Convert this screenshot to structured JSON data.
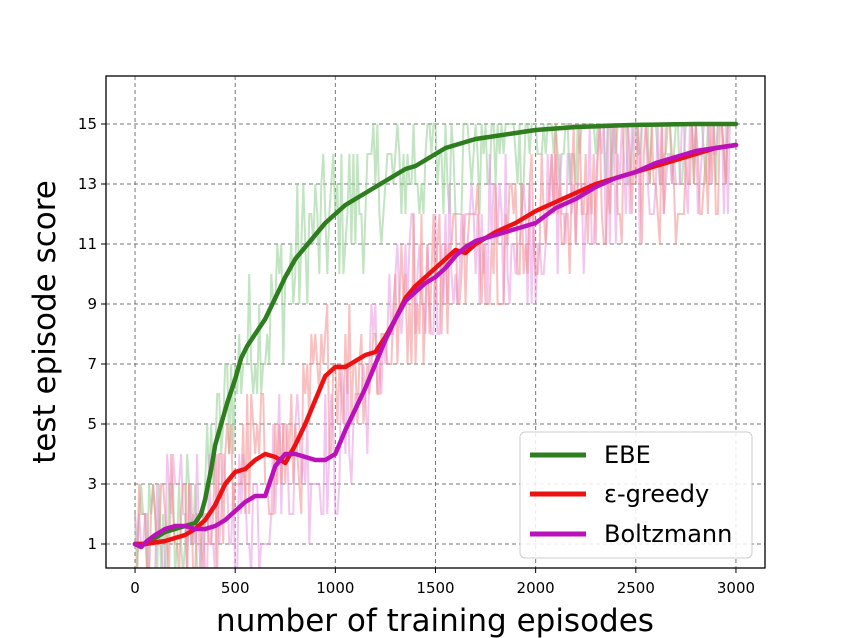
{
  "chart_data": {
    "type": "line",
    "title": "",
    "xlabel": "number of training episodes",
    "ylabel": "test episode score",
    "xlim": [
      -145,
      3145
    ],
    "ylim": [
      0.2,
      16.6
    ],
    "xticks": [
      0,
      500,
      1000,
      1500,
      2000,
      2500,
      3000
    ],
    "yticks": [
      1,
      3,
      5,
      7,
      9,
      11,
      13,
      15
    ],
    "grid": true,
    "legend_position": "lower-right",
    "series": [
      {
        "name": "EBE",
        "color": "#2e7d1f",
        "raw_color": "#8fce8f",
        "x": [
          0,
          50,
          100,
          150,
          200,
          250,
          300,
          330,
          350,
          380,
          400,
          430,
          460,
          500,
          530,
          560,
          600,
          650,
          700,
          750,
          800,
          850,
          900,
          950,
          1000,
          1050,
          1100,
          1150,
          1200,
          1250,
          1300,
          1350,
          1400,
          1450,
          1500,
          1550,
          1600,
          1650,
          1700,
          1800,
          1900,
          2000,
          2100,
          2200,
          2300,
          2400,
          2500,
          2600,
          2700,
          2800,
          2900,
          3000
        ],
        "y": [
          1.0,
          1.0,
          1.2,
          1.4,
          1.5,
          1.6,
          1.7,
          2.0,
          2.5,
          3.5,
          4.3,
          5.0,
          5.7,
          6.5,
          7.2,
          7.6,
          8.0,
          8.5,
          9.2,
          9.9,
          10.5,
          10.9,
          11.3,
          11.7,
          12.0,
          12.3,
          12.5,
          12.7,
          12.9,
          13.1,
          13.3,
          13.5,
          13.6,
          13.8,
          14.0,
          14.2,
          14.3,
          14.4,
          14.5,
          14.6,
          14.7,
          14.8,
          14.85,
          14.9,
          14.92,
          14.95,
          14.97,
          14.98,
          14.99,
          15.0,
          15.0,
          15.0
        ]
      },
      {
        "name": "ε-greedy",
        "color": "#ee1111",
        "raw_color": "#f28c8c",
        "x": [
          0,
          50,
          100,
          150,
          200,
          250,
          300,
          350,
          400,
          450,
          500,
          550,
          600,
          650,
          700,
          750,
          800,
          850,
          900,
          950,
          1000,
          1050,
          1100,
          1150,
          1200,
          1250,
          1300,
          1350,
          1400,
          1450,
          1500,
          1550,
          1600,
          1650,
          1700,
          1800,
          1900,
          2000,
          2100,
          2200,
          2300,
          2400,
          2500,
          2600,
          2700,
          2800,
          2900,
          3000
        ],
        "y": [
          1.0,
          1.0,
          1.05,
          1.1,
          1.2,
          1.3,
          1.5,
          1.8,
          2.3,
          3.0,
          3.4,
          3.5,
          3.8,
          4.0,
          3.9,
          3.7,
          4.3,
          5.0,
          5.8,
          6.6,
          6.9,
          6.9,
          7.1,
          7.3,
          7.4,
          7.9,
          8.5,
          9.2,
          9.6,
          9.9,
          10.2,
          10.5,
          10.8,
          10.7,
          11.0,
          11.4,
          11.7,
          12.1,
          12.4,
          12.7,
          13.0,
          13.2,
          13.4,
          13.6,
          13.8,
          14.0,
          14.2,
          14.3
        ]
      },
      {
        "name": "Boltzmann",
        "color": "#bb11bb",
        "raw_color": "#e898e0",
        "x": [
          0,
          30,
          60,
          100,
          150,
          200,
          250,
          300,
          350,
          400,
          450,
          500,
          550,
          600,
          650,
          700,
          750,
          800,
          850,
          900,
          950,
          1000,
          1050,
          1100,
          1150,
          1200,
          1250,
          1300,
          1350,
          1400,
          1450,
          1500,
          1550,
          1600,
          1650,
          1700,
          1800,
          1900,
          2000,
          2100,
          2200,
          2300,
          2400,
          2500,
          2600,
          2700,
          2800,
          2900,
          3000
        ],
        "y": [
          1.0,
          0.9,
          1.1,
          1.3,
          1.5,
          1.6,
          1.6,
          1.5,
          1.5,
          1.6,
          1.8,
          2.1,
          2.4,
          2.6,
          2.6,
          3.6,
          4.0,
          4.0,
          3.9,
          3.8,
          3.8,
          4.0,
          4.8,
          5.5,
          6.2,
          7.0,
          7.8,
          8.5,
          9.1,
          9.4,
          9.7,
          9.9,
          10.2,
          10.6,
          10.9,
          11.1,
          11.3,
          11.5,
          11.7,
          12.2,
          12.5,
          12.9,
          13.2,
          13.4,
          13.7,
          13.9,
          14.1,
          14.2,
          14.3
        ]
      }
    ]
  }
}
